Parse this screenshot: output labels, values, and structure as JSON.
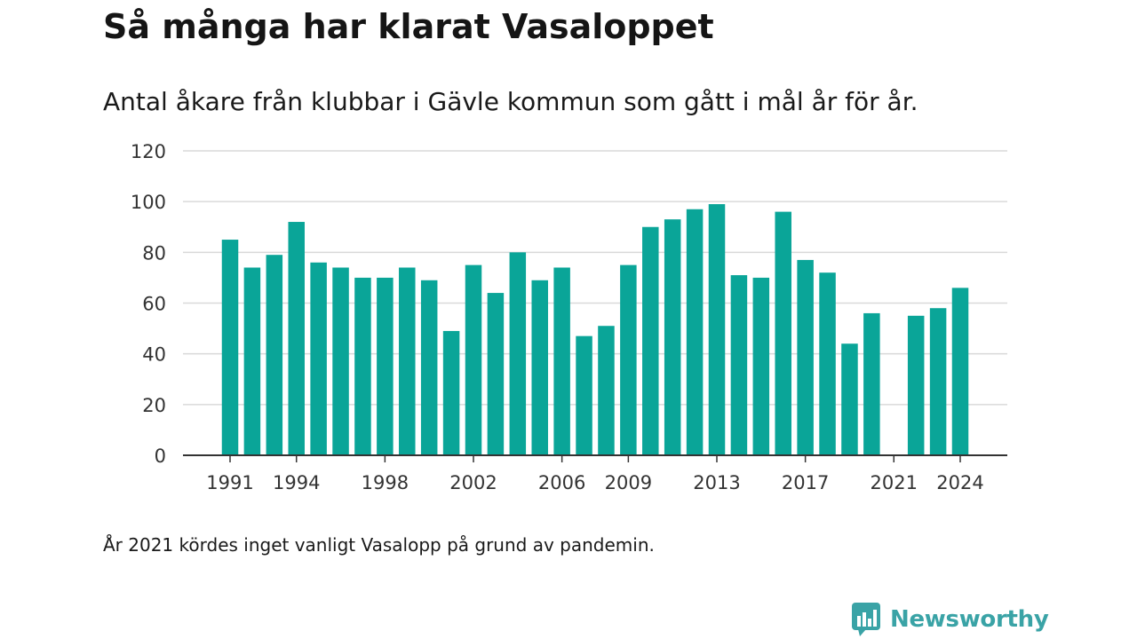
{
  "title": "Så många har klarat Vasaloppet",
  "subtitle": "Antal åkare från klubbar i Gävle kommun som gått i mål år för år.",
  "footnote": "År 2021 kördes inget vanligt Vasalopp på grund av pandemin.",
  "brand": {
    "name": "Newsworthy",
    "icon": "newsworthy-logo-icon",
    "color": "#3aa3a6"
  },
  "chart_data": {
    "type": "bar",
    "bar_color": "#0aa598",
    "categories": [
      1991,
      1992,
      1993,
      1994,
      1995,
      1996,
      1997,
      1998,
      1999,
      2000,
      2001,
      2002,
      2003,
      2004,
      2005,
      2006,
      2007,
      2008,
      2009,
      2010,
      2011,
      2012,
      2013,
      2014,
      2015,
      2016,
      2017,
      2018,
      2019,
      2020,
      2021,
      2022,
      2023,
      2024
    ],
    "values": [
      85,
      74,
      79,
      92,
      76,
      74,
      70,
      70,
      74,
      69,
      49,
      75,
      64,
      80,
      69,
      74,
      47,
      51,
      75,
      90,
      93,
      97,
      99,
      71,
      70,
      96,
      77,
      72,
      44,
      56,
      null,
      55,
      58,
      66
    ],
    "x_tick_labels": [
      "1991",
      "1994",
      "1998",
      "2002",
      "2006",
      "2009",
      "2013",
      "2017",
      "2021",
      "2024"
    ],
    "y_ticks": [
      0,
      20,
      40,
      60,
      80,
      100,
      120
    ],
    "ylim": [
      0,
      120
    ],
    "grid": true
  }
}
